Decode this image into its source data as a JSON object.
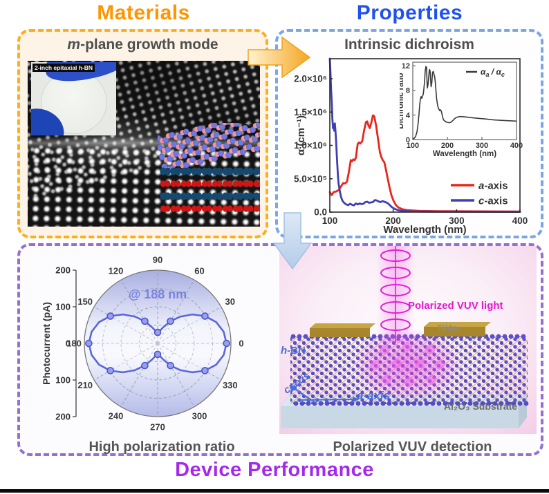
{
  "headers": {
    "materials": "Materials",
    "properties": "Properties",
    "device_performance": "Device Performance"
  },
  "materials": {
    "title": "m-plane growth mode",
    "inset_label": "2-inch epitaxial h-BN"
  },
  "properties": {
    "title": "Intrinsic dichroism"
  },
  "device": {
    "polar_caption": "High polarization ratio",
    "device_caption": "Polarized VUV detection",
    "labels": {
      "light": "Polarized VUV light",
      "electrode": "Ti/Au",
      "hbn": "h-BN",
      "c_axis": "c-axis",
      "a_axis": "a-axis",
      "substrate": "Al₂O₃ Substrate"
    }
  },
  "colors": {
    "materials_accent": "#FF9500",
    "materials_border": "#FFAE1A",
    "materials_bg": "#FDF4E7",
    "properties_accent": "#2051F0",
    "properties_border": "#7AA6E6",
    "device_accent": "#A428EE",
    "device_border": "#9670D0",
    "a_axis_line": "#E8261C",
    "c_axis_line": "#3F3FB5",
    "ratio_line": "#3A3A3A",
    "polar_line": "#5B66DB",
    "vuv_magenta": "#E617CF",
    "gold_electrode": "#B08A28",
    "caption_text": "#555555"
  },
  "chart_data": [
    {
      "id": "main-spectra",
      "type": "line",
      "title": "",
      "xlabel": "Wavelength (nm)",
      "ylabel": "α (cm⁻¹)",
      "xlim": [
        100,
        400
      ],
      "ylim": [
        0,
        2300000
      ],
      "x_ticks": [
        {
          "v": 100,
          "label": "100"
        },
        {
          "v": 200,
          "label": "200"
        },
        {
          "v": 300,
          "label": "300"
        },
        {
          "v": 400,
          "label": "400"
        }
      ],
      "y_ticks": [
        {
          "v": 0,
          "label": "0.0"
        },
        {
          "v": 500000,
          "label": "5.0×10⁵"
        },
        {
          "v": 1000000,
          "label": "1.0×10⁶"
        },
        {
          "v": 1500000,
          "label": "1.5×10⁶"
        },
        {
          "v": 2000000,
          "label": "2.0×10⁶"
        }
      ],
      "legend_position": "inside-right-bottom",
      "series": [
        {
          "name": "a-axis",
          "color": "#E8261C",
          "y_scale": 100000,
          "x": [
            100,
            103,
            106,
            110,
            114,
            118,
            121,
            124,
            127,
            130,
            133,
            135,
            137,
            139,
            141,
            144,
            146,
            148,
            151,
            154,
            157,
            159,
            161,
            163,
            166,
            168,
            170,
            173,
            176,
            179,
            181,
            184,
            186,
            188,
            191,
            194,
            197,
            200,
            204,
            208,
            214,
            222,
            240,
            270,
            310,
            360,
            400
          ],
          "y": [
            3.0,
            2.55,
            3.0,
            3.1,
            3.3,
            3.9,
            4.35,
            4.3,
            4.55,
            6.0,
            7.8,
            7.6,
            7.9,
            7.8,
            8.1,
            10.2,
            10.45,
            10.3,
            10.6,
            12.2,
            13.5,
            13.6,
            13.0,
            12.6,
            13.6,
            14.5,
            14.4,
            13.0,
            11.0,
            9.0,
            8.3,
            7.7,
            7.5,
            6.6,
            5.2,
            3.8,
            2.6,
            1.8,
            1.1,
            0.7,
            0.45,
            0.3,
            0.2,
            0.15,
            0.12,
            0.1,
            0.08
          ]
        },
        {
          "name": "c-axis",
          "color": "#3F3FB5",
          "y_scale": 100000,
          "x": [
            100,
            101,
            102,
            103,
            104,
            105,
            106,
            107,
            108,
            109,
            110,
            111,
            112,
            113,
            114,
            116,
            118,
            120,
            123,
            126,
            129,
            132,
            135,
            138,
            141,
            144,
            147,
            150,
            153,
            156,
            159,
            162,
            165,
            168,
            171,
            174,
            177,
            180,
            183,
            186,
            189,
            192,
            195,
            198,
            202,
            206,
            210,
            218,
            230,
            260,
            320,
            400
          ],
          "y": [
            23,
            21,
            18.5,
            16.5,
            14,
            12.6,
            13.2,
            12.2,
            13.3,
            12,
            10.5,
            8.5,
            6.8,
            5.2,
            4.2,
            3.0,
            2.2,
            1.7,
            1.35,
            1.15,
            1.05,
            1.25,
            1.1,
            1.0,
            1.3,
            1.15,
            1.3,
            1.2,
            1.25,
            1.5,
            1.55,
            1.4,
            1.45,
            1.5,
            1.8,
            1.75,
            1.6,
            1.5,
            1.65,
            1.55,
            1.45,
            1.3,
            1.0,
            0.75,
            0.5,
            0.35,
            0.25,
            0.15,
            0.1,
            0.07,
            0.05,
            0.04
          ]
        }
      ]
    },
    {
      "id": "dichroic-inset",
      "type": "line",
      "title": "",
      "xlabel": "Wavelength (nm)",
      "ylabel": "Dichronic ratio",
      "xlim": [
        100,
        400
      ],
      "ylim": [
        0,
        12.6
      ],
      "x_ticks": [
        {
          "v": 100,
          "label": "100"
        },
        {
          "v": 200,
          "label": "200"
        },
        {
          "v": 300,
          "label": "300"
        },
        {
          "v": 400,
          "label": "400"
        }
      ],
      "y_ticks": [
        {
          "v": 0,
          "label": "0"
        },
        {
          "v": 4,
          "label": "4"
        },
        {
          "v": 8,
          "label": "8"
        },
        {
          "v": 12,
          "label": "12"
        }
      ],
      "legend_position": "inside-top-right",
      "legend_rich": [
        {
          "t": "α"
        },
        {
          "t": "a",
          "sub": true
        },
        {
          "t": " / α"
        },
        {
          "t": "c",
          "sub": true
        }
      ],
      "series": [
        {
          "name": "dichroic ratio",
          "color": "#3A3A3A",
          "x": [
            100,
            104,
            108,
            112,
            115,
            118,
            120,
            122,
            124,
            126,
            128,
            130,
            132,
            134,
            136,
            138,
            140,
            141,
            142,
            144,
            146,
            148,
            150,
            152,
            153,
            155,
            157,
            159,
            161,
            163,
            165,
            167,
            169,
            172,
            175,
            178,
            180,
            182,
            184,
            186,
            189,
            193,
            197,
            201,
            206,
            211,
            216,
            222,
            228,
            236,
            246,
            258,
            272,
            290,
            310,
            335,
            365,
            400
          ],
          "y": [
            0.1,
            0.2,
            0.5,
            1.2,
            2.4,
            4.2,
            5.6,
            6.6,
            7.0,
            6.7,
            7.1,
            7.3,
            8.2,
            9.4,
            11.2,
            11.9,
            11.7,
            9.6,
            8.4,
            8.9,
            10.2,
            11.4,
            11.2,
            9.4,
            8.6,
            9.2,
            10.9,
            11.1,
            10.7,
            10.3,
            9.4,
            8.0,
            6.6,
            5.5,
            5.0,
            4.7,
            4.85,
            4.7,
            4.3,
            3.7,
            3.2,
            3.0,
            2.85,
            2.8,
            2.75,
            2.85,
            3.1,
            3.45,
            3.65,
            3.75,
            3.72,
            3.65,
            3.55,
            3.45,
            3.35,
            3.2,
            3.1,
            3.0
          ]
        }
      ]
    },
    {
      "id": "polar-photocurrent",
      "type": "polar-line",
      "annotation": "@ 188 nm",
      "radial_axis_label": "Photocurrent (pA)",
      "rmax": 200,
      "rings": [
        50,
        100,
        150,
        200
      ],
      "angle_ticks": [
        0,
        30,
        60,
        90,
        120,
        150,
        180,
        210,
        240,
        270,
        300,
        330
      ],
      "radial_tick_labels": [
        "200",
        "100",
        "0",
        "100",
        "200"
      ],
      "color": "#5B66DB",
      "curve": {
        "angles_deg": [
          0,
          10,
          20,
          30,
          40,
          50,
          60,
          70,
          80,
          90,
          100,
          110,
          120,
          130,
          140,
          150,
          160,
          170,
          180,
          190,
          200,
          210,
          220,
          230,
          240,
          250,
          260,
          270,
          280,
          290,
          300,
          310,
          320,
          330,
          340,
          350,
          360
        ],
        "r": [
          188,
          183,
          170,
          149,
          123,
          95,
          70,
          48,
          35,
          30,
          35,
          48,
          70,
          95,
          123,
          149,
          170,
          183,
          188,
          183,
          170,
          149,
          123,
          95,
          70,
          48,
          35,
          30,
          35,
          48,
          70,
          95,
          123,
          149,
          170,
          183,
          188
        ]
      },
      "markers": {
        "angles_deg": [
          0,
          30,
          60,
          90,
          120,
          150,
          180,
          210,
          240,
          270,
          300,
          330
        ],
        "r": [
          188,
          149,
          70,
          30,
          70,
          149,
          188,
          149,
          70,
          30,
          70,
          149
        ]
      }
    }
  ]
}
